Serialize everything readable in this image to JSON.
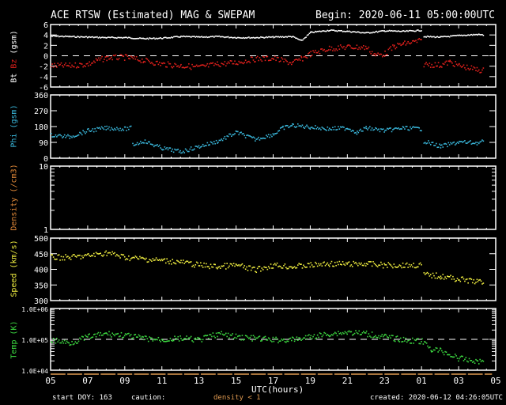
{
  "header": {
    "title": "ACE RTSW (Estimated) MAG & SWEPAM",
    "begin": "Begin: 2020-06-11 05:00:00UTC"
  },
  "footer": {
    "start_doy": "start DOY: 163",
    "caution": "caution:",
    "density_note": "density < 1",
    "created": "created: 2020-06-12 04:26:05UTC"
  },
  "colors": {
    "bt": "#ffffff",
    "bz": "#e0201c",
    "phi": "#3ab8dc",
    "density": "#e08838",
    "speed": "#f0ee40",
    "temp": "#3cd840",
    "caution": "#e09a50"
  },
  "chart_data": [
    {
      "type": "scatter",
      "name": "mag",
      "ylabel_parts": [
        "Bt",
        "Bz",
        "(gsm)"
      ],
      "ylim": [
        -6,
        6
      ],
      "yticks": [
        "6",
        "4",
        "2",
        "0",
        "-2",
        "-4",
        "-6"
      ],
      "ytick_values": [
        6,
        4,
        2,
        0,
        -2,
        -4,
        -6
      ],
      "zero_line": 0,
      "series": [
        {
          "name": "Bt",
          "x": [
            0,
            1,
            2,
            3,
            4,
            5,
            6,
            7,
            8,
            9,
            10,
            11,
            12,
            13,
            13.5,
            14,
            15,
            16,
            17,
            18,
            19,
            20,
            20.1,
            21,
            22,
            23,
            23.3
          ],
          "y": [
            3.9,
            3.8,
            3.7,
            3.6,
            3.6,
            3.4,
            3.5,
            3.8,
            3.7,
            3.8,
            3.6,
            3.6,
            3.7,
            3.8,
            3.0,
            4.6,
            5.0,
            4.8,
            4.5,
            4.9,
            4.8,
            5.0,
            3.8,
            3.7,
            4.0,
            4.2,
            4.1
          ]
        },
        {
          "name": "Bz",
          "x": [
            0,
            1,
            2,
            2.5,
            3,
            4,
            5,
            6,
            7,
            8,
            9,
            10,
            11,
            12,
            13,
            13.5,
            14,
            15,
            16,
            17,
            17.5,
            18,
            18.5,
            19,
            20,
            20.1,
            21,
            21.5,
            22,
            23,
            23.3
          ],
          "y": [
            -1.8,
            -1.8,
            -1.5,
            -0.8,
            -0.3,
            -0.2,
            -0.8,
            -1.5,
            -1.8,
            -2.1,
            -1.5,
            -1.2,
            -0.5,
            -0.4,
            -1.3,
            -0.5,
            0.5,
            1.5,
            1.8,
            1.7,
            0.2,
            0.5,
            1.9,
            2.4,
            3.0,
            -1.5,
            -1.7,
            -1.1,
            -1.8,
            -2.6,
            -2.7
          ]
        }
      ]
    },
    {
      "type": "scatter",
      "name": "phi",
      "ylabel": "Phi (gsm)",
      "ylim": [
        0,
        360
      ],
      "yticks": [
        "360",
        "270",
        "180",
        "90",
        "0"
      ],
      "ytick_values": [
        360,
        270,
        180,
        90,
        0
      ],
      "series": [
        {
          "name": "Phi",
          "x": [
            0,
            1,
            2,
            3,
            4,
            4.3,
            4.4,
            5,
            6,
            7,
            8,
            9,
            10,
            11,
            12,
            12.5,
            13,
            14,
            15,
            16,
            16.5,
            17,
            18,
            19,
            20,
            20.1,
            21,
            22,
            23,
            23.3
          ],
          "y": [
            135,
            125,
            160,
            175,
            170,
            175,
            80,
            100,
            60,
            40,
            70,
            100,
            150,
            110,
            140,
            175,
            190,
            180,
            170,
            175,
            150,
            175,
            160,
            175,
            170,
            100,
            70,
            95,
            90,
            100
          ]
        }
      ]
    },
    {
      "type": "scatter",
      "name": "density",
      "ylabel": "Density (/cm3)",
      "ylim": [
        1,
        10
      ],
      "log": true,
      "yticks": [
        "10",
        "1"
      ],
      "ytick_values": [
        10,
        1
      ],
      "series": [
        {
          "name": "Density",
          "x": [],
          "y": []
        }
      ]
    },
    {
      "type": "scatter",
      "name": "speed",
      "ylabel": "Speed (km/s)",
      "ylim": [
        300,
        500
      ],
      "yticks": [
        "500",
        "450",
        "400",
        "350",
        "300"
      ],
      "ytick_values": [
        500,
        450,
        400,
        350,
        300
      ],
      "series": [
        {
          "name": "Speed",
          "x": [
            0,
            1,
            2,
            3,
            4,
            5,
            6,
            7,
            8,
            9,
            10,
            11,
            12,
            13,
            14,
            15,
            16,
            17,
            18,
            19,
            20,
            20.1,
            21,
            22,
            23,
            23.3
          ],
          "y": [
            440,
            440,
            445,
            455,
            440,
            435,
            430,
            425,
            415,
            410,
            415,
            400,
            415,
            410,
            415,
            420,
            418,
            420,
            415,
            415,
            415,
            385,
            380,
            370,
            362,
            360
          ]
        }
      ]
    },
    {
      "type": "scatter",
      "name": "temp",
      "ylabel": "Temp (K)",
      "ylim": [
        10000,
        1000000
      ],
      "log": true,
      "yticks": [
        "1.0E+06",
        "1.0E+05",
        "1.0E+04"
      ],
      "ytick_values": [
        1000000,
        100000,
        10000
      ],
      "ref_line": 100000,
      "series": [
        {
          "name": "Temp",
          "x": [
            0,
            1,
            2,
            3,
            4,
            5,
            6,
            7,
            8,
            9,
            10,
            11,
            12,
            13,
            14,
            15,
            16,
            17,
            18,
            19,
            20,
            20.5,
            21,
            22,
            23,
            23.3
          ],
          "y": [
            100000,
            79000,
            126000,
            158000,
            141000,
            112000,
            100000,
            112000,
            100000,
            158000,
            126000,
            112000,
            100000,
            100000,
            126000,
            158000,
            178000,
            158000,
            126000,
            100000,
            89000,
            50000,
            45000,
            25000,
            20000,
            20000
          ]
        }
      ]
    }
  ],
  "xaxis": {
    "label": "UTC(hours)",
    "ticks": [
      "05",
      "07",
      "09",
      "11",
      "13",
      "15",
      "17",
      "19",
      "21",
      "23",
      "01",
      "03",
      "05"
    ],
    "xlim": [
      0,
      24
    ]
  }
}
